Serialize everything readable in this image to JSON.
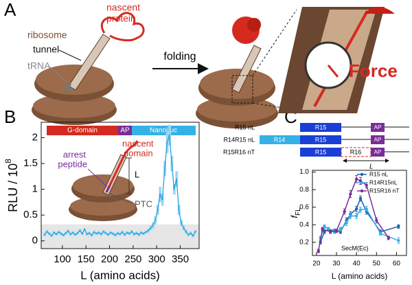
{
  "panel_labels": [
    "A",
    "B",
    "C"
  ],
  "panel_a": {
    "nascent_protein": [
      "nascent",
      "protein"
    ],
    "ribosome": "ribosome",
    "tunnel": "tunnel",
    "trna": "tRNA",
    "folding": "folding",
    "force": "Force"
  },
  "panel_b_inset": {
    "domains": [
      "G-domain",
      "AP",
      "NanoLuc"
    ],
    "nascent_domain": [
      "nascent",
      "domain"
    ],
    "arrest_peptide": [
      "arrest",
      "peptide"
    ],
    "length": "L",
    "ptc": "PTC"
  },
  "panel_c_constructs": {
    "rows": [
      {
        "name": "R15 nL",
        "segments": [
          "R15",
          "AP"
        ]
      },
      {
        "name": "R14R15 nL",
        "segments": [
          "R14",
          "R15",
          "AP"
        ]
      },
      {
        "name": "R15R16 nT",
        "segments": [
          "R15",
          "R16",
          "AP"
        ]
      }
    ],
    "length": "L"
  },
  "chart_data": [
    {
      "type": "line",
      "xlabel": "L (amino acids)",
      "ylabel": "RLU / 10",
      "ylabel_superscript": "8",
      "color": "#1fa3df",
      "band_color": "#9fd6f0",
      "x": [
        62,
        67,
        72,
        77,
        82,
        87,
        92,
        97,
        102,
        107,
        112,
        117,
        122,
        127,
        132,
        137,
        142,
        147,
        152,
        157,
        162,
        167,
        172,
        177,
        182,
        187,
        192,
        197,
        202,
        207,
        212,
        217,
        222,
        227,
        232,
        237,
        242,
        247,
        252,
        257,
        262,
        267,
        272,
        277,
        282,
        287,
        292,
        297,
        302,
        307,
        312,
        317,
        322,
        327,
        332,
        337,
        342,
        347,
        352,
        357,
        362,
        367,
        372,
        377,
        382
      ],
      "values": [
        0.12,
        0.18,
        0.14,
        0.1,
        0.16,
        0.13,
        0.17,
        0.14,
        0.11,
        0.15,
        0.19,
        0.13,
        0.16,
        0.12,
        0.15,
        0.2,
        0.14,
        0.22,
        0.13,
        0.15,
        0.11,
        0.17,
        0.14,
        0.16,
        0.13,
        0.18,
        0.15,
        0.12,
        0.16,
        0.14,
        0.11,
        0.15,
        0.13,
        0.17,
        0.12,
        0.16,
        0.14,
        0.18,
        0.13,
        0.15,
        0.12,
        0.16,
        0.14,
        0.17,
        0.2,
        0.25,
        0.3,
        0.4,
        0.6,
        0.9,
        0.8,
        1.4,
        1.9,
        2.05,
        1.5,
        1.0,
        1.2,
        0.6,
        0.35,
        0.25,
        0.18,
        0.12,
        0.15,
        0.1,
        0.18
      ],
      "errors": [
        0.03,
        0.03,
        0.03,
        0.03,
        0.03,
        0.03,
        0.03,
        0.03,
        0.03,
        0.03,
        0.03,
        0.03,
        0.03,
        0.03,
        0.03,
        0.03,
        0.03,
        0.03,
        0.03,
        0.03,
        0.03,
        0.03,
        0.03,
        0.03,
        0.03,
        0.03,
        0.03,
        0.03,
        0.03,
        0.03,
        0.03,
        0.03,
        0.03,
        0.03,
        0.03,
        0.03,
        0.03,
        0.03,
        0.03,
        0.03,
        0.03,
        0.03,
        0.03,
        0.03,
        0.04,
        0.05,
        0.06,
        0.08,
        0.1,
        0.15,
        0.12,
        0.15,
        0.2,
        0.2,
        0.15,
        0.1,
        0.15,
        0.1,
        0.06,
        0.05,
        0.04,
        0.03,
        0.03,
        0.03,
        0.03
      ],
      "shaded_range": [
        -0.15,
        0.32
      ],
      "xlim": [
        55,
        390
      ],
      "xticks": [
        100,
        150,
        200,
        250,
        300,
        350
      ],
      "ylim": [
        -0.15,
        2.3
      ],
      "yticks": [
        0,
        0.5,
        1,
        1.5,
        2
      ]
    },
    {
      "type": "line",
      "xlabel": "L (amino acids)",
      "ylabel": "f",
      "ylabel_subscript": "FL",
      "annotation": "SecM(Ec)",
      "legend": "upper right",
      "series": [
        {
          "name": "R15 nL",
          "color": "#1f5fa8",
          "x": [
            22,
            24,
            26,
            29,
            32,
            35,
            37,
            40,
            42,
            45,
            52,
            61
          ],
          "values": [
            0.2,
            0.32,
            0.35,
            0.33,
            0.32,
            0.45,
            0.52,
            0.58,
            0.7,
            0.55,
            0.32,
            0.38
          ],
          "errors": [
            0.02,
            0.02,
            0.02,
            0.02,
            0.02,
            0.03,
            0.03,
            0.03,
            0.03,
            0.03,
            0.02,
            0.02
          ]
        },
        {
          "name": "R14R15nL",
          "color": "#36b1e8",
          "x": [
            22,
            24,
            26,
            29,
            32,
            35,
            37,
            40,
            42,
            45,
            52,
            61
          ],
          "values": [
            0.25,
            0.38,
            0.35,
            0.32,
            0.35,
            0.42,
            0.5,
            0.5,
            0.57,
            0.58,
            0.3,
            0.22
          ],
          "errors": [
            0.02,
            0.02,
            0.02,
            0.02,
            0.02,
            0.03,
            0.03,
            0.03,
            0.03,
            0.03,
            0.02,
            0.03
          ]
        },
        {
          "name": "R15R16 nT",
          "color": "#7a2c98",
          "x": [
            21,
            23,
            27,
            30,
            34,
            37,
            40,
            42,
            45,
            50,
            56
          ],
          "values": [
            0.1,
            0.35,
            0.32,
            0.33,
            0.55,
            0.75,
            0.92,
            0.9,
            0.85,
            0.45,
            0.25
          ],
          "errors": [
            0.02,
            0.02,
            0.02,
            0.02,
            0.03,
            0.04,
            0.04,
            0.04,
            0.03,
            0.03,
            0.02
          ]
        }
      ],
      "xlim": [
        18,
        65
      ],
      "xticks": [
        20,
        30,
        40,
        50,
        60
      ],
      "ylim": [
        0.05,
        1.02
      ],
      "yticks": [
        0.2,
        0.4,
        0.6,
        0.8,
        {
          "value": 1,
          "label": "1.0"
        }
      ]
    }
  ]
}
